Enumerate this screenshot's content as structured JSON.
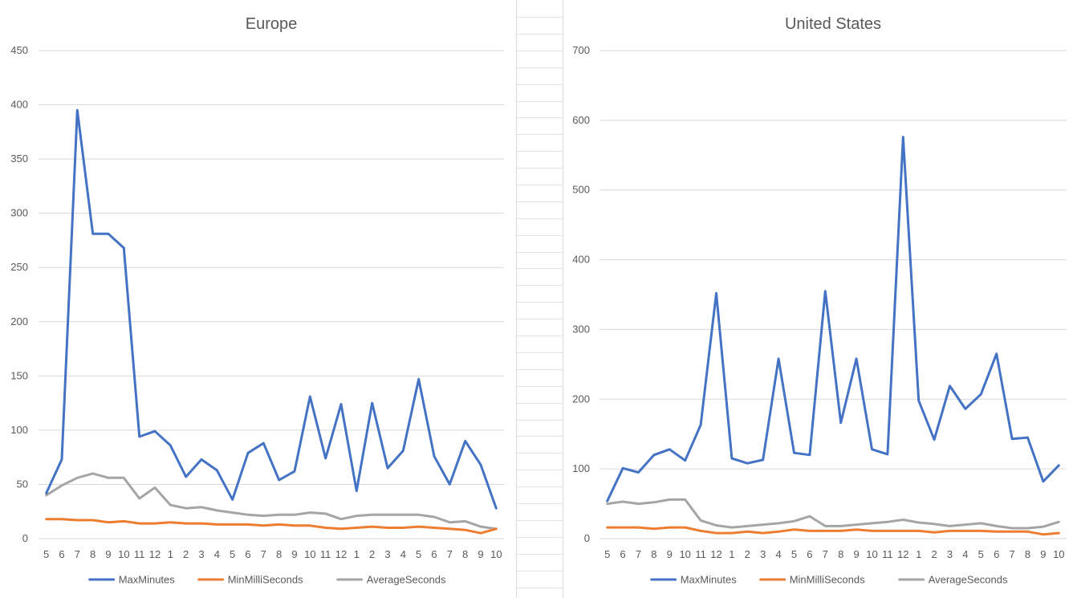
{
  "colors": {
    "MaxMinutes": "#4472c4",
    "MinMilliSeconds": "#ed7d31",
    "AverageSeconds": "#a5a5a5",
    "grid": "#d9d9d9",
    "text": "#595959"
  },
  "chart_data": [
    {
      "type": "line",
      "title": "Europe",
      "xlabel": "",
      "ylabel": "",
      "ylim": [
        0,
        450
      ],
      "yticks": [
        0,
        50,
        100,
        150,
        200,
        250,
        300,
        350,
        400,
        450
      ],
      "grid": true,
      "legend_position": "bottom",
      "categories": [
        "5",
        "6",
        "7",
        "8",
        "9",
        "10",
        "11",
        "12",
        "1",
        "2",
        "3",
        "4",
        "5",
        "6",
        "7",
        "8",
        "9",
        "10",
        "11",
        "12",
        "1",
        "2",
        "3",
        "4",
        "5",
        "6",
        "7",
        "8",
        "9",
        "10"
      ],
      "series": [
        {
          "name": "MaxMinutes",
          "values": [
            42,
            73,
            395,
            281,
            281,
            268,
            94,
            99,
            86,
            57,
            73,
            63,
            36,
            79,
            88,
            54,
            62,
            131,
            74,
            124,
            44,
            125,
            65,
            81,
            147,
            76,
            50,
            90,
            68,
            28
          ]
        },
        {
          "name": "MinMilliSeconds",
          "values": [
            18,
            18,
            17,
            17,
            15,
            16,
            14,
            14,
            15,
            14,
            14,
            13,
            13,
            13,
            12,
            13,
            12,
            12,
            10,
            9,
            10,
            11,
            10,
            10,
            11,
            10,
            9,
            8,
            5,
            9
          ]
        },
        {
          "name": "AverageSeconds",
          "values": [
            40,
            49,
            56,
            60,
            56,
            56,
            37,
            47,
            31,
            28,
            29,
            26,
            24,
            22,
            21,
            22,
            22,
            24,
            23,
            18,
            21,
            22,
            22,
            22,
            22,
            20,
            15,
            16,
            11,
            9
          ]
        }
      ]
    },
    {
      "type": "line",
      "title": "United States",
      "xlabel": "",
      "ylabel": "",
      "ylim": [
        0,
        700
      ],
      "yticks": [
        0,
        100,
        200,
        300,
        400,
        500,
        600,
        700
      ],
      "grid": true,
      "legend_position": "bottom",
      "categories": [
        "5",
        "6",
        "7",
        "8",
        "9",
        "10",
        "11",
        "12",
        "1",
        "2",
        "3",
        "4",
        "5",
        "6",
        "7",
        "8",
        "9",
        "10",
        "11",
        "12",
        "1",
        "2",
        "3",
        "4",
        "5",
        "6",
        "7",
        "8",
        "9",
        "10"
      ],
      "series": [
        {
          "name": "MaxMinutes",
          "values": [
            54,
            101,
            95,
            120,
            128,
            112,
            163,
            352,
            115,
            108,
            113,
            258,
            123,
            120,
            355,
            166,
            258,
            128,
            121,
            576,
            198,
            142,
            219,
            186,
            207,
            265,
            143,
            145,
            82,
            105
          ]
        },
        {
          "name": "MinMilliSeconds",
          "values": [
            16,
            16,
            16,
            14,
            16,
            16,
            11,
            8,
            8,
            10,
            8,
            10,
            13,
            11,
            11,
            11,
            13,
            11,
            11,
            11,
            11,
            9,
            11,
            11,
            11,
            10,
            10,
            10,
            6,
            8
          ]
        },
        {
          "name": "AverageSeconds",
          "values": [
            50,
            53,
            50,
            52,
            56,
            56,
            26,
            19,
            16,
            18,
            20,
            22,
            25,
            32,
            18,
            18,
            20,
            22,
            24,
            27,
            23,
            21,
            18,
            20,
            22,
            18,
            15,
            15,
            17,
            24
          ]
        }
      ]
    }
  ]
}
